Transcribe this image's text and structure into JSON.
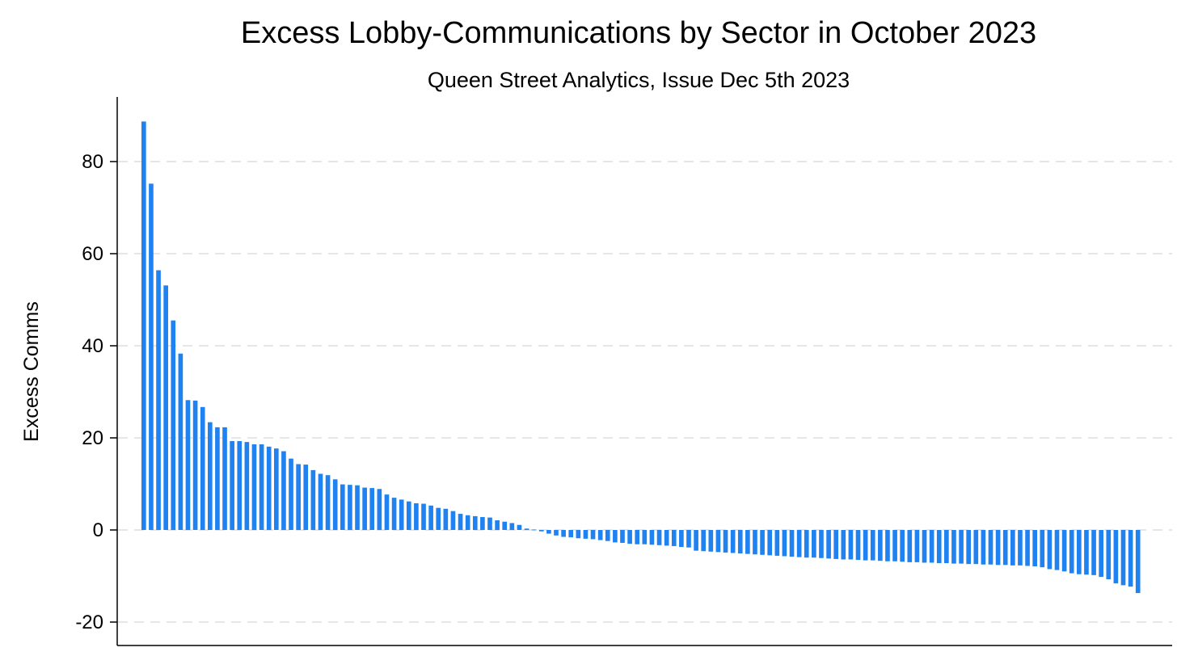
{
  "chart_data": {
    "type": "bar",
    "title": "Excess Lobby-Communications by Sector in October 2023",
    "subtitle": "Queen Street Analytics, Issue Dec 5th 2023",
    "xlabel": "",
    "ylabel": "Excess Comms",
    "ylim": [
      -25,
      94
    ],
    "yticks": [
      -20,
      0,
      20,
      40,
      60,
      80
    ],
    "grid": true,
    "bar_color": "#1f82f0",
    "grid_color": "#e6e6e6",
    "series": [
      {
        "values": [
          88.7,
          75.2,
          56.4,
          53.1,
          45.5,
          38.3,
          28.2,
          28.1,
          26.7,
          23.4,
          22.3,
          22.3,
          19.3,
          19.3,
          19.1,
          18.6,
          18.6,
          18.1,
          17.7,
          17.1,
          15.5,
          14.3,
          14.2,
          13.0,
          12.2,
          11.9,
          11.0,
          9.9,
          9.8,
          9.7,
          9.2,
          9.1,
          8.9,
          7.7,
          7.0,
          6.6,
          6.2,
          5.8,
          5.7,
          5.3,
          4.8,
          4.6,
          4.1,
          3.5,
          3.2,
          3.0,
          2.8,
          2.7,
          2.1,
          1.8,
          1.5,
          1.1,
          0.3,
          0.1,
          -0.3,
          -0.8,
          -1.2,
          -1.5,
          -1.6,
          -1.8,
          -1.9,
          -2.0,
          -2.2,
          -2.4,
          -2.7,
          -2.8,
          -3.0,
          -3.1,
          -3.1,
          -3.2,
          -3.3,
          -3.4,
          -3.5,
          -3.7,
          -3.8,
          -4.5,
          -4.6,
          -4.7,
          -4.8,
          -4.9,
          -5.0,
          -5.1,
          -5.2,
          -5.3,
          -5.4,
          -5.5,
          -5.6,
          -5.7,
          -5.8,
          -5.9,
          -6.0,
          -6.0,
          -6.1,
          -6.2,
          -6.3,
          -6.4,
          -6.4,
          -6.5,
          -6.6,
          -6.6,
          -6.7,
          -6.8,
          -6.8,
          -6.9,
          -7.0,
          -7.0,
          -7.1,
          -7.1,
          -7.2,
          -7.2,
          -7.3,
          -7.3,
          -7.4,
          -7.4,
          -7.5,
          -7.5,
          -7.6,
          -7.6,
          -7.7,
          -7.7,
          -7.8,
          -7.9,
          -8.1,
          -8.5,
          -8.7,
          -9.0,
          -9.4,
          -9.6,
          -9.7,
          -9.8,
          -10.2,
          -10.7,
          -11.6,
          -12.0,
          -12.3,
          -13.7
        ]
      }
    ]
  }
}
